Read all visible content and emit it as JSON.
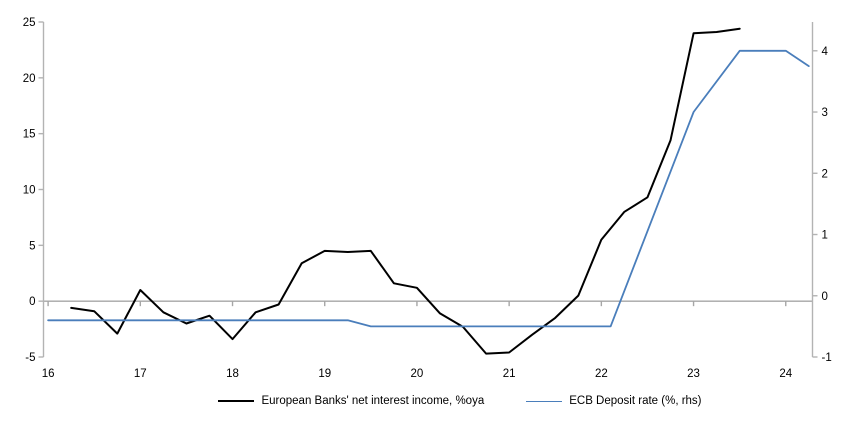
{
  "chart_data": {
    "type": "line",
    "title": "",
    "grid": "zero-line-only",
    "legend_position": "bottom",
    "colors": {
      "axis_line": "#b3b3b3",
      "zero_line": "#a6a6a6",
      "tick_text": "#000000"
    },
    "x_axis": {
      "range": [
        15.95,
        24.29
      ],
      "ticks": [
        16,
        17,
        18,
        19,
        20,
        21,
        22,
        23,
        24
      ],
      "tick_labels": [
        "16",
        "17",
        "18",
        "19",
        "20",
        "21",
        "22",
        "23",
        "24"
      ]
    },
    "left_axis": {
      "range": [
        -5,
        25
      ],
      "ticks": [
        -5,
        0,
        5,
        10,
        15,
        20,
        25
      ],
      "tick_labels": [
        "-5",
        "0",
        "5",
        "10",
        "15",
        "20",
        "25"
      ]
    },
    "right_axis": {
      "range": [
        -1,
        4.47
      ],
      "ticks": [
        -1,
        0,
        1,
        2,
        3,
        4
      ],
      "tick_labels": [
        "-1",
        "0",
        "1",
        "2",
        "3",
        "4"
      ]
    },
    "series": [
      {
        "name": "European Banks' net interest income, %oya",
        "axis": "left",
        "color": "#000000",
        "stroke_width": 2,
        "x": [
          16.25,
          16.5,
          16.75,
          17.0,
          17.25,
          17.5,
          17.75,
          18.0,
          18.25,
          18.5,
          18.75,
          19.0,
          19.25,
          19.5,
          19.75,
          20.0,
          20.25,
          20.5,
          20.75,
          21.0,
          21.25,
          21.5,
          21.75,
          22.0,
          22.25,
          22.5,
          22.75,
          23.0,
          23.25,
          23.5
        ],
        "y": [
          -0.6,
          -0.9,
          -2.9,
          1.0,
          -1.0,
          -2.0,
          -1.3,
          -3.4,
          -1.0,
          -0.3,
          3.4,
          4.5,
          4.4,
          4.5,
          1.6,
          1.2,
          -1.1,
          -2.3,
          -4.7,
          -4.6,
          -3.0,
          -1.5,
          0.5,
          5.5,
          8.0,
          9.3,
          14.4,
          24.0,
          24.1,
          24.4
        ]
      },
      {
        "name": "ECB Deposit rate (%, rhs)",
        "axis": "right",
        "color": "#4a7ebb",
        "stroke_width": 1.8,
        "x": [
          16.0,
          19.25,
          19.5,
          22.1,
          23.0,
          23.5,
          24.0,
          24.25
        ],
        "y": [
          -0.4,
          -0.4,
          -0.5,
          -0.5,
          3.0,
          4.0,
          4.0,
          3.75
        ]
      }
    ]
  },
  "legend": {
    "items": [
      {
        "label": "European Banks' net interest income, %oya"
      },
      {
        "label": "ECB Deposit rate (%, rhs)"
      }
    ]
  }
}
